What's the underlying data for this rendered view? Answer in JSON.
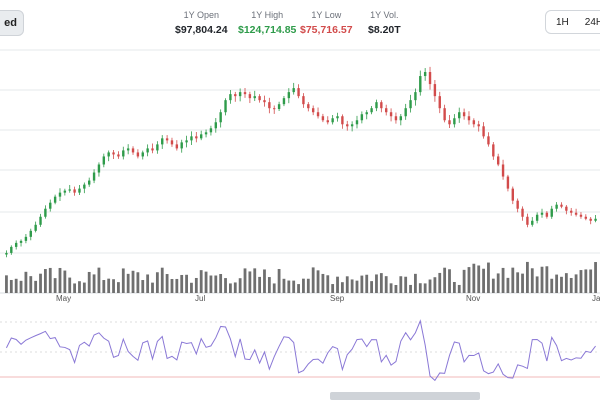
{
  "toolbar": {
    "left_pill_label": "ed",
    "timeframes": [
      "1H",
      "24H"
    ]
  },
  "stats": [
    {
      "label": "1Y Open",
      "value": "$97,804.24",
      "color": "#1f2329"
    },
    {
      "label": "1Y High",
      "value": "$124,714.85",
      "color": "#2e9b4a"
    },
    {
      "label": "1Y Low",
      "value": "$75,716.57",
      "color": "#d24b4b"
    },
    {
      "label": "1Y Vol.",
      "value": "$8.20T",
      "color": "#1f2329"
    }
  ],
  "chart_data": {
    "type": "candlestick",
    "x_tick_labels": [
      "May",
      "Jul",
      "Sep",
      "Nov",
      "Ja"
    ],
    "closes": [
      79000,
      80500,
      81500,
      82000,
      83000,
      84500,
      86000,
      88000,
      90000,
      91500,
      93000,
      94000,
      94500,
      94800,
      94000,
      95000,
      96000,
      97000,
      99000,
      101000,
      103000,
      104000,
      103500,
      103000,
      104500,
      105000,
      104000,
      103000,
      104000,
      105000,
      104500,
      106000,
      107500,
      107000,
      106000,
      105000,
      106500,
      107000,
      108000,
      107500,
      108500,
      109000,
      110000,
      111500,
      114000,
      117000,
      118500,
      118000,
      119000,
      118500,
      117500,
      118000,
      117000,
      116500,
      115000,
      114800,
      116000,
      117500,
      119000,
      120000,
      118000,
      116000,
      115000,
      114000,
      113000,
      112000,
      111500,
      112500,
      113000,
      111000,
      110500,
      111000,
      112000,
      113500,
      114000,
      115000,
      116500,
      115000,
      114000,
      113000,
      112000,
      113000,
      115000,
      117000,
      119000,
      123000,
      124000,
      121000,
      118000,
      115000,
      112000,
      111000,
      112500,
      114000,
      113000,
      112000,
      111000,
      110500,
      108000,
      106000,
      103000,
      101000,
      98000,
      95000,
      92000,
      90000,
      88000,
      86000,
      87000,
      88500,
      89000,
      88000,
      90000,
      91000,
      90500,
      89500,
      89000,
      88500,
      88000,
      87500,
      87000,
      87500
    ]
  },
  "colors": {
    "up": "#2e9b4a",
    "down": "#d24b4b",
    "volume": "#6f6f6f",
    "rsi_line": "#8a78d6",
    "rsi_overbought": "#5ab3e6",
    "rsi_oversold": "#d24b4b",
    "grid": "#e6e8eb"
  }
}
